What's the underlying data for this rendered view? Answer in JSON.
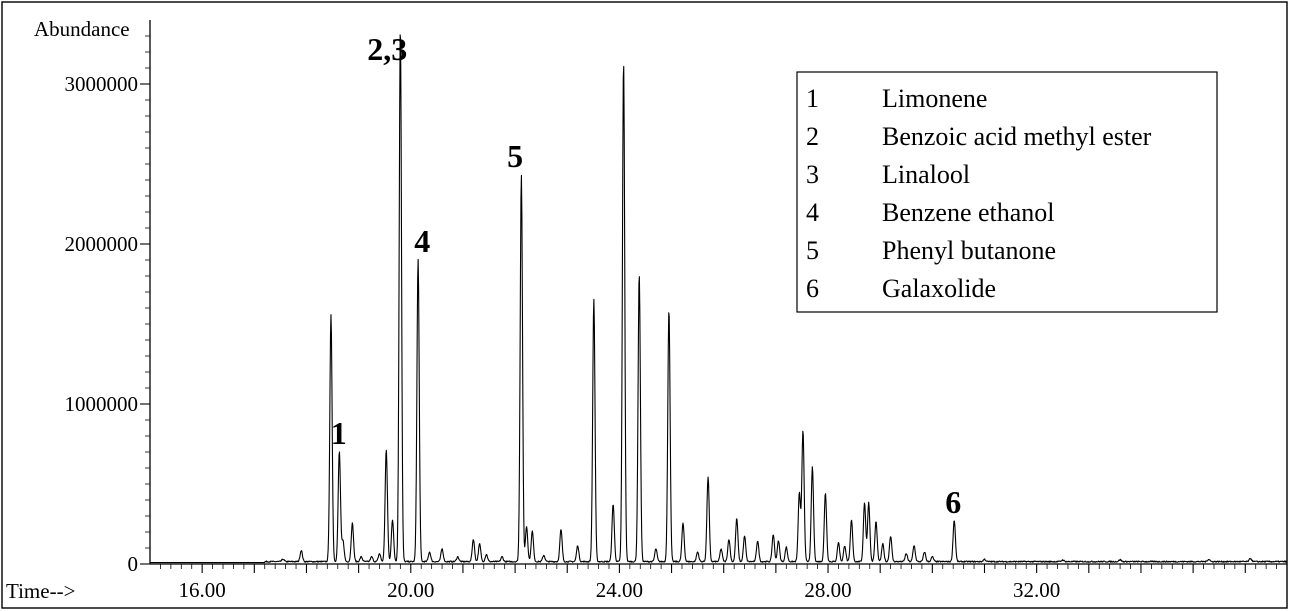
{
  "chart_data": {
    "type": "line",
    "ylabel": "Abundance",
    "xlabel": "Time-->",
    "xlim": [
      15.0,
      36.8
    ],
    "ylim": [
      0,
      3400000
    ],
    "x_ticks": [
      16.0,
      20.0,
      24.0,
      28.0,
      32.0
    ],
    "x_tick_labels": [
      "16.00",
      "20.00",
      "24.00",
      "28.00",
      "32.00"
    ],
    "y_ticks": [
      0,
      1000000,
      2000000,
      3000000
    ],
    "y_tick_labels": [
      "0",
      "1000000",
      "2000000",
      "3000000"
    ],
    "grid": false,
    "legend_position": "top-right",
    "legend": [
      {
        "num": "1",
        "name": "Limonene"
      },
      {
        "num": "2",
        "name": "Benzoic acid methyl ester"
      },
      {
        "num": "3",
        "name": "Linalool"
      },
      {
        "num": "4",
        "name": "Benzene ethanol"
      },
      {
        "num": "5",
        "name": "Phenyl butanone"
      },
      {
        "num": "6",
        "name": "Galaxolide"
      }
    ],
    "annotations": [
      {
        "label": "1",
        "x": 18.62,
        "y": 750000
      },
      {
        "label": "2,3",
        "x": 19.55,
        "y": 3150000
      },
      {
        "label": "4",
        "x": 20.22,
        "y": 1950000
      },
      {
        "label": "5",
        "x": 22.0,
        "y": 2480000
      },
      {
        "label": "6",
        "x": 30.4,
        "y": 320000
      }
    ],
    "baseline": 15000,
    "peaks": [
      {
        "x": 17.55,
        "y": 15000
      },
      {
        "x": 17.9,
        "y": 70000
      },
      {
        "x": 18.47,
        "y": 1540000
      },
      {
        "x": 18.63,
        "y": 690000
      },
      {
        "x": 18.7,
        "y": 130000
      },
      {
        "x": 18.88,
        "y": 240000
      },
      {
        "x": 19.05,
        "y": 30000
      },
      {
        "x": 19.25,
        "y": 30000
      },
      {
        "x": 19.4,
        "y": 50000
      },
      {
        "x": 19.53,
        "y": 700000
      },
      {
        "x": 19.65,
        "y": 260000
      },
      {
        "x": 19.8,
        "y": 3350000
      },
      {
        "x": 20.14,
        "y": 1890000
      },
      {
        "x": 20.36,
        "y": 60000
      },
      {
        "x": 20.6,
        "y": 80000
      },
      {
        "x": 20.9,
        "y": 30000
      },
      {
        "x": 21.2,
        "y": 140000
      },
      {
        "x": 21.32,
        "y": 110000
      },
      {
        "x": 21.45,
        "y": 45000
      },
      {
        "x": 21.75,
        "y": 30000
      },
      {
        "x": 22.12,
        "y": 2420000
      },
      {
        "x": 22.22,
        "y": 220000
      },
      {
        "x": 22.33,
        "y": 190000
      },
      {
        "x": 22.55,
        "y": 40000
      },
      {
        "x": 22.88,
        "y": 200000
      },
      {
        "x": 23.2,
        "y": 100000
      },
      {
        "x": 23.51,
        "y": 1640000
      },
      {
        "x": 23.88,
        "y": 360000
      },
      {
        "x": 24.08,
        "y": 3130000
      },
      {
        "x": 24.38,
        "y": 1800000
      },
      {
        "x": 24.7,
        "y": 80000
      },
      {
        "x": 24.95,
        "y": 1580000
      },
      {
        "x": 25.22,
        "y": 240000
      },
      {
        "x": 25.5,
        "y": 60000
      },
      {
        "x": 25.7,
        "y": 530000
      },
      {
        "x": 25.95,
        "y": 80000
      },
      {
        "x": 26.1,
        "y": 140000
      },
      {
        "x": 26.25,
        "y": 270000
      },
      {
        "x": 26.4,
        "y": 160000
      },
      {
        "x": 26.65,
        "y": 130000
      },
      {
        "x": 26.95,
        "y": 170000
      },
      {
        "x": 27.05,
        "y": 130000
      },
      {
        "x": 27.2,
        "y": 90000
      },
      {
        "x": 27.45,
        "y": 430000
      },
      {
        "x": 27.52,
        "y": 820000
      },
      {
        "x": 27.7,
        "y": 590000
      },
      {
        "x": 27.95,
        "y": 430000
      },
      {
        "x": 28.2,
        "y": 120000
      },
      {
        "x": 28.32,
        "y": 100000
      },
      {
        "x": 28.45,
        "y": 260000
      },
      {
        "x": 28.7,
        "y": 370000
      },
      {
        "x": 28.78,
        "y": 370000
      },
      {
        "x": 28.92,
        "y": 250000
      },
      {
        "x": 29.05,
        "y": 110000
      },
      {
        "x": 29.2,
        "y": 160000
      },
      {
        "x": 29.5,
        "y": 50000
      },
      {
        "x": 29.65,
        "y": 100000
      },
      {
        "x": 29.85,
        "y": 60000
      },
      {
        "x": 30.0,
        "y": 30000
      },
      {
        "x": 30.42,
        "y": 260000
      },
      {
        "x": 31.0,
        "y": 15000
      },
      {
        "x": 32.5,
        "y": 10000
      },
      {
        "x": 33.6,
        "y": 12000
      },
      {
        "x": 35.3,
        "y": 15000
      },
      {
        "x": 36.1,
        "y": 20000
      }
    ]
  }
}
